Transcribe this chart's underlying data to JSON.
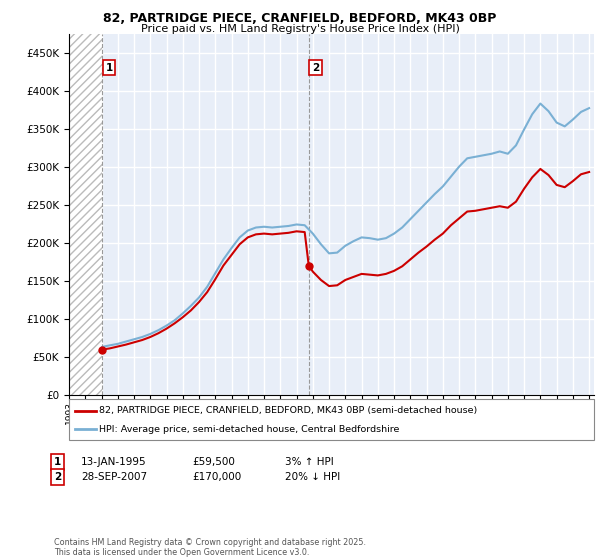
{
  "title": "82, PARTRIDGE PIECE, CRANFIELD, BEDFORD, MK43 0BP",
  "subtitle": "Price paid vs. HM Land Registry's House Price Index (HPI)",
  "legend_line1": "82, PARTRIDGE PIECE, CRANFIELD, BEDFORD, MK43 0BP (semi-detached house)",
  "legend_line2": "HPI: Average price, semi-detached house, Central Bedfordshire",
  "annotation1_label": "1",
  "annotation1_date": "13-JAN-1995",
  "annotation1_price": "£59,500",
  "annotation1_hpi": "3% ↑ HPI",
  "annotation2_label": "2",
  "annotation2_date": "28-SEP-2007",
  "annotation2_price": "£170,000",
  "annotation2_hpi": "20% ↓ HPI",
  "footnote": "Contains HM Land Registry data © Crown copyright and database right 2025.\nThis data is licensed under the Open Government Licence v3.0.",
  "red_color": "#cc0000",
  "blue_color": "#7ab0d4",
  "background_color": "#e8eef8",
  "ylim": [
    0,
    475000
  ],
  "yticks": [
    0,
    50000,
    100000,
    150000,
    200000,
    250000,
    300000,
    350000,
    400000,
    450000
  ],
  "sale1_year": 1995.04,
  "sale1_price": 59500,
  "sale2_year": 2007.75,
  "sale2_price": 170000,
  "hpi_years": [
    1995.04,
    1995.5,
    1996.0,
    1996.5,
    1997.0,
    1997.5,
    1998.0,
    1998.5,
    1999.0,
    1999.5,
    2000.0,
    2000.5,
    2001.0,
    2001.5,
    2002.0,
    2002.5,
    2003.0,
    2003.5,
    2004.0,
    2004.5,
    2005.0,
    2005.5,
    2006.0,
    2006.5,
    2007.0,
    2007.5,
    2008.0,
    2008.5,
    2009.0,
    2009.5,
    2010.0,
    2010.5,
    2011.0,
    2011.5,
    2012.0,
    2012.5,
    2013.0,
    2013.5,
    2014.0,
    2014.5,
    2015.0,
    2015.5,
    2016.0,
    2016.5,
    2017.0,
    2017.5,
    2018.0,
    2018.5,
    2019.0,
    2019.5,
    2020.0,
    2020.5,
    2021.0,
    2021.5,
    2022.0,
    2022.5,
    2023.0,
    2023.5,
    2024.0,
    2024.5,
    2025.0
  ],
  "hpi_values": [
    63000,
    65000,
    67000,
    70000,
    73000,
    76000,
    80000,
    85000,
    91000,
    98000,
    107000,
    117000,
    128000,
    142000,
    160000,
    178000,
    193000,
    207000,
    216000,
    220000,
    221000,
    220000,
    221000,
    222000,
    224000,
    223000,
    212000,
    198000,
    186000,
    187000,
    196000,
    202000,
    207000,
    206000,
    204000,
    206000,
    212000,
    220000,
    231000,
    242000,
    253000,
    264000,
    274000,
    287000,
    300000,
    311000,
    313000,
    315000,
    317000,
    320000,
    317000,
    328000,
    349000,
    369000,
    383000,
    373000,
    358000,
    353000,
    362000,
    372000,
    377000
  ],
  "red_years": [
    1995.04,
    1995.5,
    1996.0,
    1996.5,
    1997.0,
    1997.5,
    1998.0,
    1998.5,
    1999.0,
    1999.5,
    2000.0,
    2000.5,
    2001.0,
    2001.5,
    2002.0,
    2002.5,
    2003.0,
    2003.5,
    2004.0,
    2004.5,
    2005.0,
    2005.5,
    2006.0,
    2006.5,
    2007.0,
    2007.5,
    2007.75,
    2007.75,
    2008.0,
    2008.5,
    2009.0,
    2009.5,
    2010.0,
    2010.5,
    2011.0,
    2011.5,
    2012.0,
    2012.5,
    2013.0,
    2013.5,
    2014.0,
    2014.5,
    2015.0,
    2015.5,
    2016.0,
    2016.5,
    2017.0,
    2017.5,
    2018.0,
    2018.5,
    2019.0,
    2019.5,
    2020.0,
    2020.5,
    2021.0,
    2021.5,
    2022.0,
    2022.5,
    2023.0,
    2023.5,
    2024.0,
    2024.5,
    2025.0
  ],
  "red_values": [
    59500,
    61000,
    63500,
    66000,
    69000,
    72000,
    76000,
    81000,
    87000,
    94000,
    102000,
    111000,
    122000,
    135000,
    152000,
    170000,
    184000,
    198000,
    207000,
    211000,
    212000,
    211000,
    212000,
    213000,
    215000,
    214000,
    170000,
    170000,
    162000,
    151000,
    143000,
    144000,
    151000,
    155000,
    159000,
    158000,
    157000,
    159000,
    163000,
    169000,
    178000,
    187000,
    195000,
    204000,
    212000,
    223000,
    232000,
    241000,
    242000,
    244000,
    246000,
    248000,
    246000,
    254000,
    271000,
    286000,
    297000,
    289000,
    276000,
    273000,
    281000,
    290000,
    293000
  ]
}
